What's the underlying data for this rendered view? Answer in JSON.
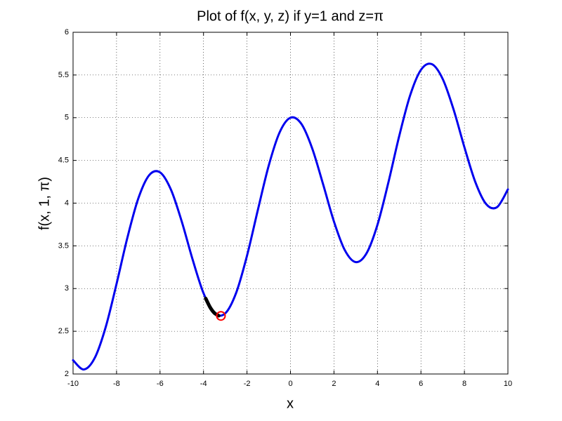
{
  "chart_data": {
    "type": "line",
    "title": "Plot of f(x, y, z) if y=1 and z=π",
    "x_label": "x",
    "y_label": "f(x, 1, π)",
    "xlim": [
      -10,
      10
    ],
    "xticks": [
      -10,
      -8,
      -6,
      -4,
      -2,
      0,
      2,
      4,
      6,
      8,
      10
    ],
    "ylim": [
      2,
      6
    ],
    "yticks": [
      2,
      2.5,
      3,
      3.5,
      4,
      4.5,
      5,
      5.5,
      6
    ],
    "grid": true,
    "series": [
      {
        "color": "#0000ee",
        "marker": "none",
        "x": [
          -10,
          -9.5,
          -9,
          -8.5,
          -8,
          -7.5,
          -7,
          -6.5,
          -6,
          -5.5,
          -5,
          -4.5,
          -4,
          -3.5,
          -3,
          -2.5,
          -2,
          -1.5,
          -1,
          -0.5,
          0,
          0.5,
          1,
          1.5,
          2,
          2.5,
          3,
          3.5,
          4,
          4.5,
          5,
          5.5,
          6,
          6.5,
          7,
          7.5,
          8,
          8.5,
          9,
          9.5,
          10
        ],
        "values": [
          2.161,
          2.053,
          2.189,
          2.548,
          3.055,
          3.597,
          4.054,
          4.327,
          4.36,
          4.159,
          3.784,
          3.339,
          2.946,
          2.714,
          2.71,
          2.949,
          3.384,
          3.921,
          4.44,
          4.828,
          5,
          4.928,
          4.64,
          4.221,
          3.784,
          3.449,
          3.31,
          3.414,
          3.746,
          4.239,
          4.784,
          5.259,
          5.56,
          5.627,
          5.454,
          5.097,
          4.654,
          4.248,
          3.989,
          3.953,
          4.161
        ]
      },
      {
        "color": "#000000",
        "marker": "none",
        "x": [
          -3.9,
          -3.7,
          -3.5,
          -3.3
        ],
        "values": [
          2.884,
          2.782,
          2.714,
          2.682
        ]
      },
      {
        "color": "#ff0000",
        "marker": "o",
        "x": [
          -3.2
        ],
        "values": [
          2.68
        ]
      }
    ]
  }
}
